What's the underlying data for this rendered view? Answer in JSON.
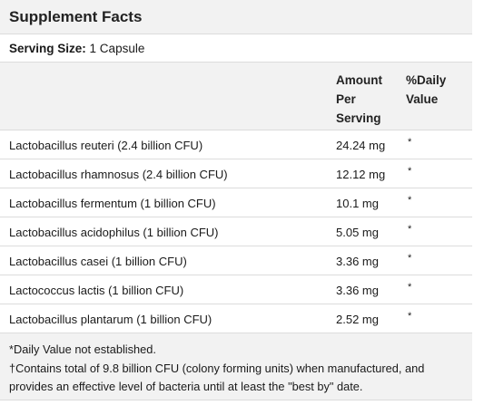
{
  "panel": {
    "title": "Supplement Facts",
    "serving_label": "Serving Size:",
    "serving_value": "1 Capsule"
  },
  "header": {
    "amount_line1": "Amount",
    "amount_line2": "Per",
    "amount_line3": "Serving",
    "dv_line1": "%Daily",
    "dv_line2": "Value"
  },
  "rows": [
    {
      "name": "Lactobacillus reuteri (2.4 billion CFU)",
      "amount": "24.24 mg",
      "dv": "*"
    },
    {
      "name": "Lactobacillus rhamnosus (2.4 billion CFU)",
      "amount": "12.12 mg",
      "dv": "*"
    },
    {
      "name": "Lactobacillus fermentum (1 billion CFU)",
      "amount": "10.1 mg",
      "dv": "*"
    },
    {
      "name": "Lactobacillus acidophilus (1 billion CFU)",
      "amount": "5.05 mg",
      "dv": "*"
    },
    {
      "name": "Lactobacillus casei (1 billion CFU)",
      "amount": "3.36 mg",
      "dv": "*"
    },
    {
      "name": "Lactococcus lactis (1 billion CFU)",
      "amount": "3.36 mg",
      "dv": "*"
    },
    {
      "name": "Lactobacillus plantarum (1 billion CFU)",
      "amount": "2.52 mg",
      "dv": "*"
    }
  ],
  "footnotes": {
    "line1": "*Daily Value not established.",
    "line2": "†Contains total of 9.8 billion CFU (colony forming units) when manufactured, and provides an effective level of bacteria until at least the \"best by\" date."
  }
}
